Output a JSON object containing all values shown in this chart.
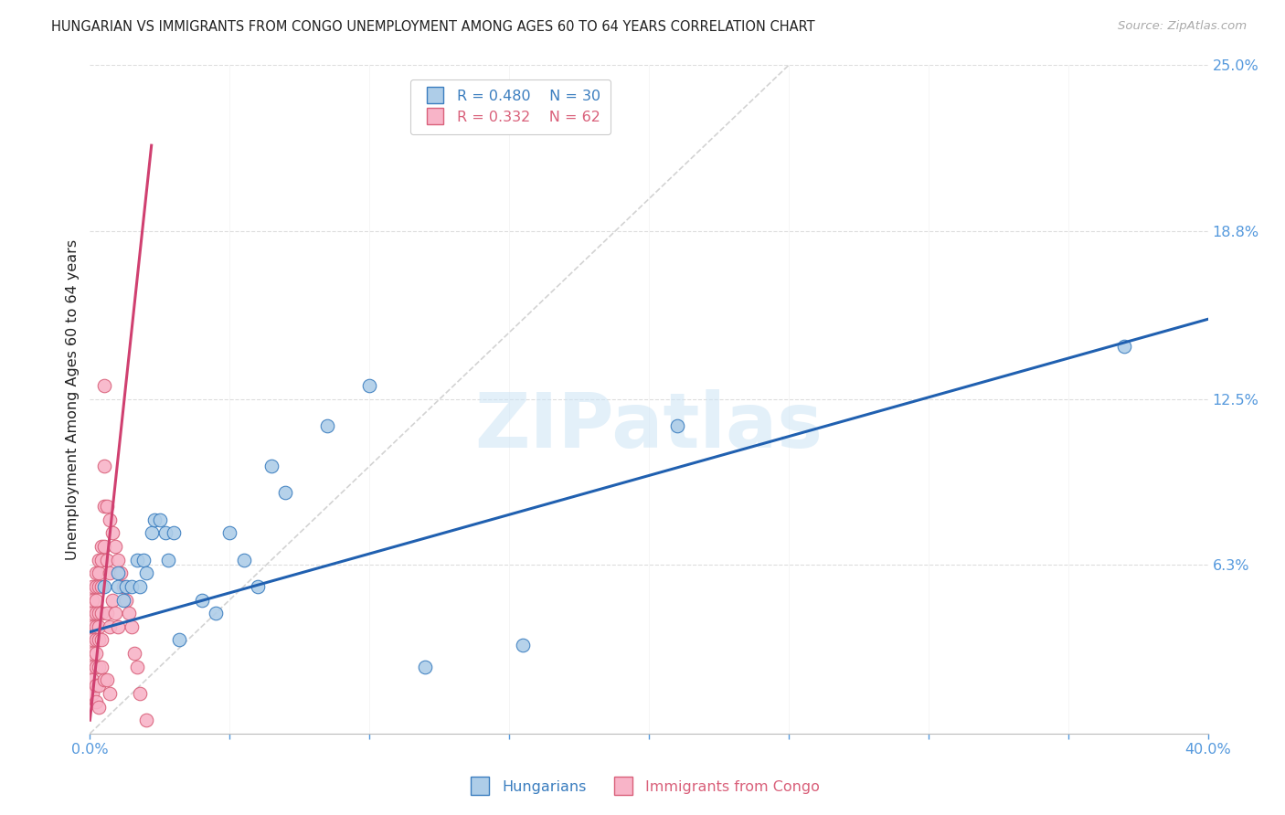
{
  "title": "HUNGARIAN VS IMMIGRANTS FROM CONGO UNEMPLOYMENT AMONG AGES 60 TO 64 YEARS CORRELATION CHART",
  "source": "Source: ZipAtlas.com",
  "ylabel": "Unemployment Among Ages 60 to 64 years",
  "xlim": [
    0.0,
    0.4
  ],
  "ylim": [
    0.0,
    0.25
  ],
  "xtick_positions": [
    0.0,
    0.05,
    0.1,
    0.15,
    0.2,
    0.25,
    0.3,
    0.35,
    0.4
  ],
  "xticklabels": [
    "0.0%",
    "",
    "",
    "",
    "",
    "",
    "",
    "",
    "40.0%"
  ],
  "ytick_labels_right": [
    "25.0%",
    "18.8%",
    "12.5%",
    "6.3%"
  ],
  "ytick_values_right": [
    0.25,
    0.188,
    0.125,
    0.063
  ],
  "watermark": "ZIPatlas",
  "legend_blue_R": "R = 0.480",
  "legend_blue_N": "N = 30",
  "legend_pink_R": "R = 0.332",
  "legend_pink_N": "N = 62",
  "blue_fill": "#aecde8",
  "blue_edge": "#3a7dbf",
  "pink_fill": "#f8b4c8",
  "pink_edge": "#d9607a",
  "diag_line_color": "#c8c8c8",
  "blue_line_color": "#2060b0",
  "pink_line_color": "#d04070",
  "grid_color": "#dddddd",
  "title_color": "#222222",
  "right_tick_color": "#5599dd",
  "bottom_tick_color": "#5599dd",
  "background_color": "#ffffff",
  "blue_scatter_x": [
    0.005,
    0.01,
    0.01,
    0.012,
    0.013,
    0.015,
    0.017,
    0.018,
    0.019,
    0.02,
    0.022,
    0.023,
    0.025,
    0.027,
    0.028,
    0.03,
    0.032,
    0.04,
    0.045,
    0.05,
    0.055,
    0.06,
    0.065,
    0.07,
    0.085,
    0.1,
    0.12,
    0.155,
    0.21,
    0.37
  ],
  "blue_scatter_y": [
    0.055,
    0.06,
    0.055,
    0.05,
    0.055,
    0.055,
    0.065,
    0.055,
    0.065,
    0.06,
    0.075,
    0.08,
    0.08,
    0.075,
    0.065,
    0.075,
    0.035,
    0.05,
    0.045,
    0.075,
    0.065,
    0.055,
    0.1,
    0.09,
    0.115,
    0.13,
    0.025,
    0.033,
    0.115,
    0.145
  ],
  "pink_scatter_x": [
    0.001,
    0.001,
    0.001,
    0.001,
    0.001,
    0.001,
    0.001,
    0.001,
    0.001,
    0.002,
    0.002,
    0.002,
    0.002,
    0.002,
    0.002,
    0.002,
    0.002,
    0.002,
    0.002,
    0.003,
    0.003,
    0.003,
    0.003,
    0.003,
    0.003,
    0.003,
    0.003,
    0.003,
    0.004,
    0.004,
    0.004,
    0.004,
    0.004,
    0.004,
    0.005,
    0.005,
    0.005,
    0.005,
    0.005,
    0.006,
    0.006,
    0.006,
    0.006,
    0.007,
    0.007,
    0.007,
    0.007,
    0.008,
    0.008,
    0.009,
    0.009,
    0.01,
    0.01,
    0.011,
    0.012,
    0.013,
    0.014,
    0.015,
    0.016,
    0.017,
    0.018,
    0.02
  ],
  "pink_scatter_y": [
    0.055,
    0.05,
    0.045,
    0.04,
    0.035,
    0.03,
    0.025,
    0.02,
    0.015,
    0.06,
    0.055,
    0.05,
    0.045,
    0.04,
    0.035,
    0.03,
    0.025,
    0.018,
    0.012,
    0.065,
    0.06,
    0.055,
    0.045,
    0.04,
    0.035,
    0.025,
    0.018,
    0.01,
    0.07,
    0.065,
    0.055,
    0.045,
    0.035,
    0.025,
    0.13,
    0.1,
    0.085,
    0.07,
    0.02,
    0.085,
    0.065,
    0.045,
    0.02,
    0.08,
    0.06,
    0.04,
    0.015,
    0.075,
    0.05,
    0.07,
    0.045,
    0.065,
    0.04,
    0.06,
    0.055,
    0.05,
    0.045,
    0.04,
    0.03,
    0.025,
    0.015,
    0.005
  ],
  "blue_line_x0": 0.0,
  "blue_line_x1": 0.4,
  "blue_line_y0": 0.038,
  "blue_line_y1": 0.155,
  "pink_line_x0": 0.0,
  "pink_line_x1": 0.022,
  "pink_line_y0": 0.005,
  "pink_line_y1": 0.22,
  "diag_line_x0": 0.0,
  "diag_line_x1": 0.25,
  "diag_line_y0": 0.0,
  "diag_line_y1": 0.25
}
